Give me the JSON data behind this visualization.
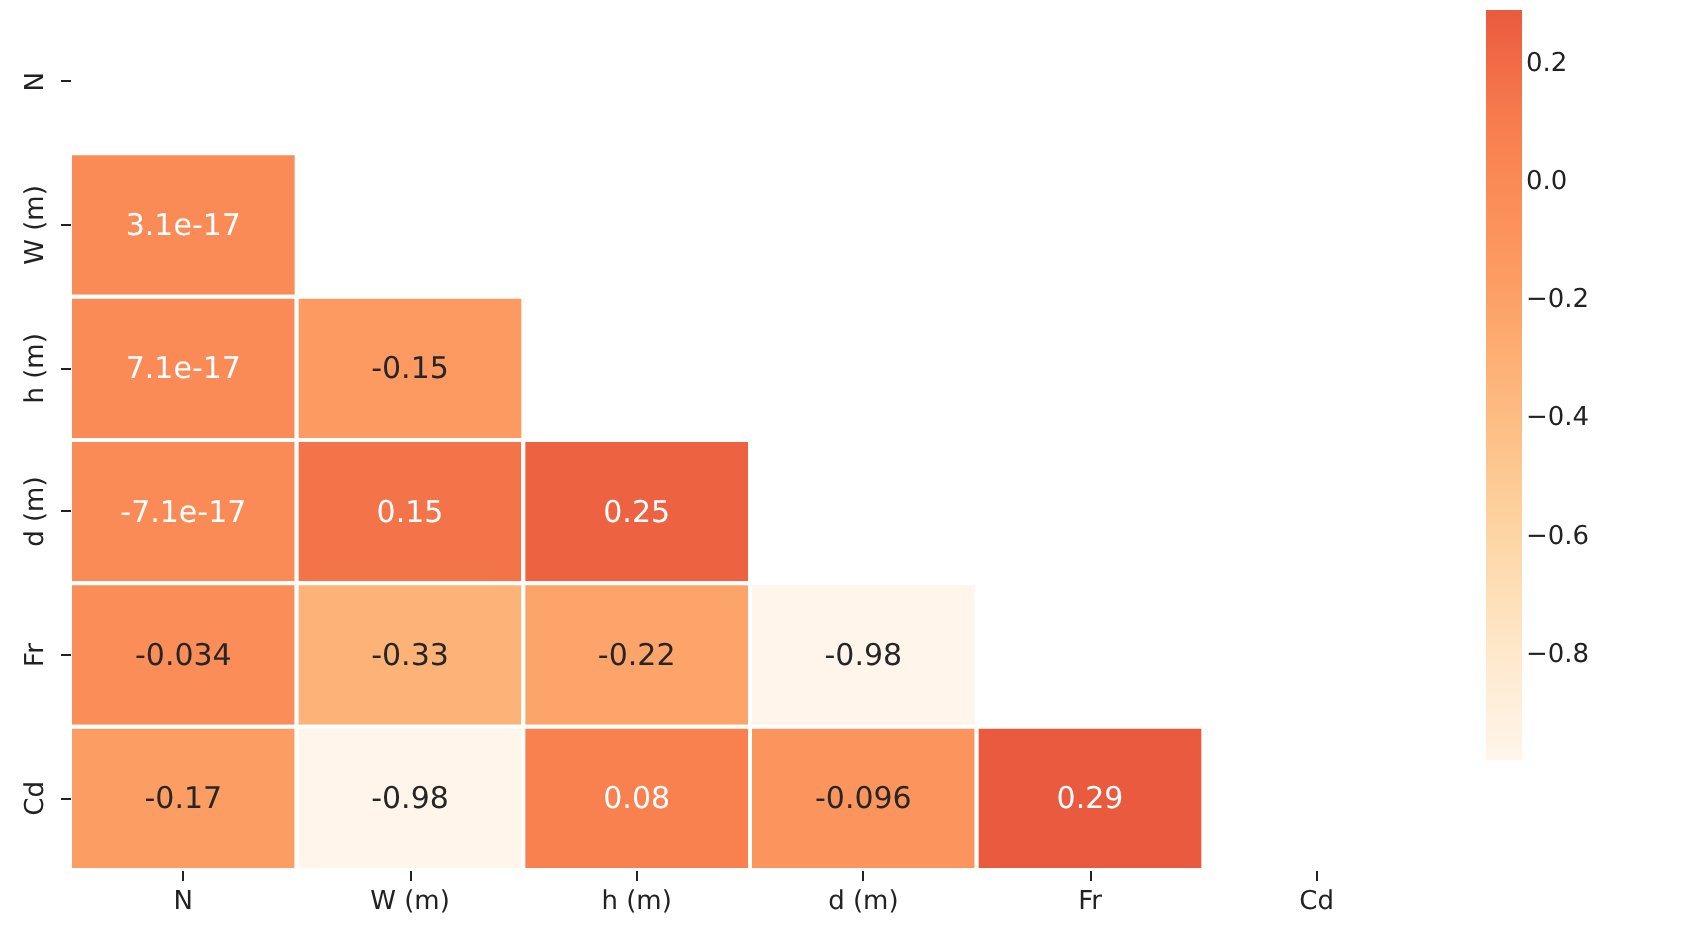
{
  "chart_data": {
    "type": "heatmap",
    "categories": [
      "N",
      "W (m)",
      "h (m)",
      "d (m)",
      "Fr",
      "Cd"
    ],
    "y_categories": [
      "N",
      "W (m)",
      "h (m)",
      "d (m)",
      "Fr",
      "Cd"
    ],
    "cells": [
      [
        null,
        null,
        null,
        null,
        null,
        null
      ],
      [
        3.1e-17,
        null,
        null,
        null,
        null,
        null
      ],
      [
        7.1e-17,
        -0.15,
        null,
        null,
        null,
        null
      ],
      [
        -7.1e-17,
        0.15,
        0.25,
        null,
        null,
        null
      ],
      [
        -0.034,
        -0.33,
        -0.22,
        -0.98,
        null,
        null
      ],
      [
        -0.17,
        -0.98,
        0.08,
        -0.096,
        0.29,
        null
      ]
    ],
    "data_labels": true,
    "clim": [
      -0.98,
      0.29
    ],
    "cticks": [
      {
        "value": 0.2,
        "label": "0.2"
      },
      {
        "value": 0.0,
        "label": "0.0"
      },
      {
        "value": -0.2,
        "label": "−0.2"
      },
      {
        "value": -0.4,
        "label": "−0.4"
      },
      {
        "value": -0.6,
        "label": "−0.6"
      },
      {
        "value": -0.8,
        "label": "−0.8"
      }
    ]
  }
}
